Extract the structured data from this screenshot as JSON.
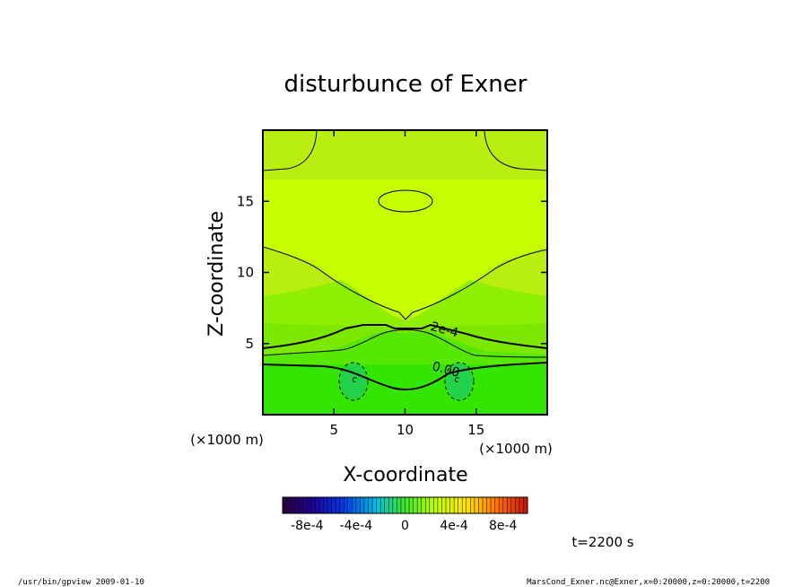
{
  "chart_data": {
    "type": "heatmap",
    "title": "disturbunce of Exner",
    "xlabel": "X-coordinate",
    "ylabel": "Z-coordinate",
    "x_unit": "(×1000 m)",
    "y_unit": "(×1000 m)",
    "xlim": [
      0,
      20
    ],
    "ylim": [
      0,
      20
    ],
    "x_ticks": [
      5,
      10,
      15
    ],
    "y_ticks": [
      5,
      10,
      15
    ],
    "x_tick_labels": [
      "5",
      "10",
      "15"
    ],
    "y_tick_labels": [
      "5",
      "10",
      "15"
    ],
    "contour_labels": [
      {
        "text": "2e-4",
        "x": 12.7,
        "y": 5.7
      },
      {
        "text": "0.00",
        "x": 12.8,
        "y": 2.9
      },
      {
        "text": "c",
        "x": 6.4,
        "y": 2.3
      },
      {
        "text": "c",
        "x": 13.6,
        "y": 2.3
      }
    ],
    "colorbar": {
      "range": [
        -0.001,
        0.001
      ],
      "tick_labels": [
        "-8e-4",
        "-4e-4",
        "0",
        "4e-4",
        "8e-4"
      ],
      "tick_values": [
        -0.0008,
        -0.0004,
        0,
        0.0004,
        0.0008
      ]
    },
    "colors": {
      "upper_field": "#c6ff00",
      "top_field": "#b8f000",
      "mid_field": "#8ef000",
      "lower_field": "#4ee800",
      "bottom_field": "#2ee500"
    }
  },
  "time_label": "t=2200 s",
  "footer": {
    "left": "/usr/bin/gpview   2009-01-10",
    "right": "MarsCond_Exner.nc@Exner,x=0:20000,z=0:20000,t=2200"
  }
}
